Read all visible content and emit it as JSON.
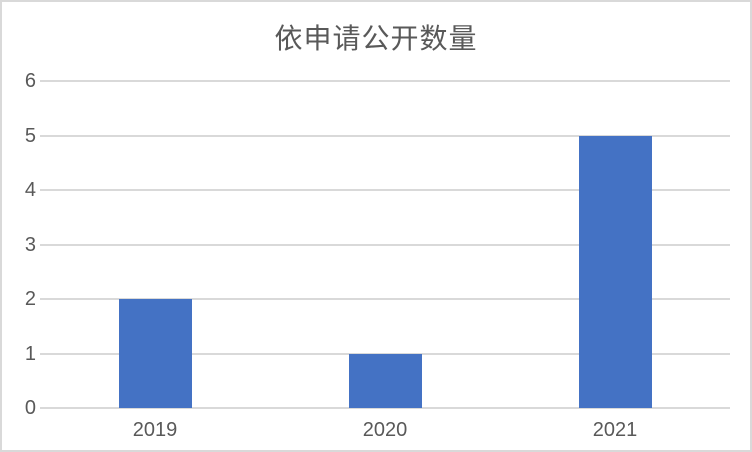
{
  "page": {
    "background_color": "#ffffff",
    "border_color": "#d9d9d9"
  },
  "chart_data": {
    "type": "bar",
    "title": "依申请公开数量",
    "categories": [
      "2019",
      "2020",
      "2021"
    ],
    "values": [
      2,
      1,
      5
    ],
    "xlabel": "",
    "ylabel": "",
    "ylim": [
      0,
      6
    ],
    "yticks": [
      0,
      1,
      2,
      3,
      4,
      5,
      6
    ],
    "grid": true,
    "legend": false,
    "bar_color": "#4472c4",
    "gridline_color": "#d9d9d9",
    "axis_line_color": "#d9d9d9",
    "title_color": "#595959",
    "tick_label_color": "#595959"
  }
}
